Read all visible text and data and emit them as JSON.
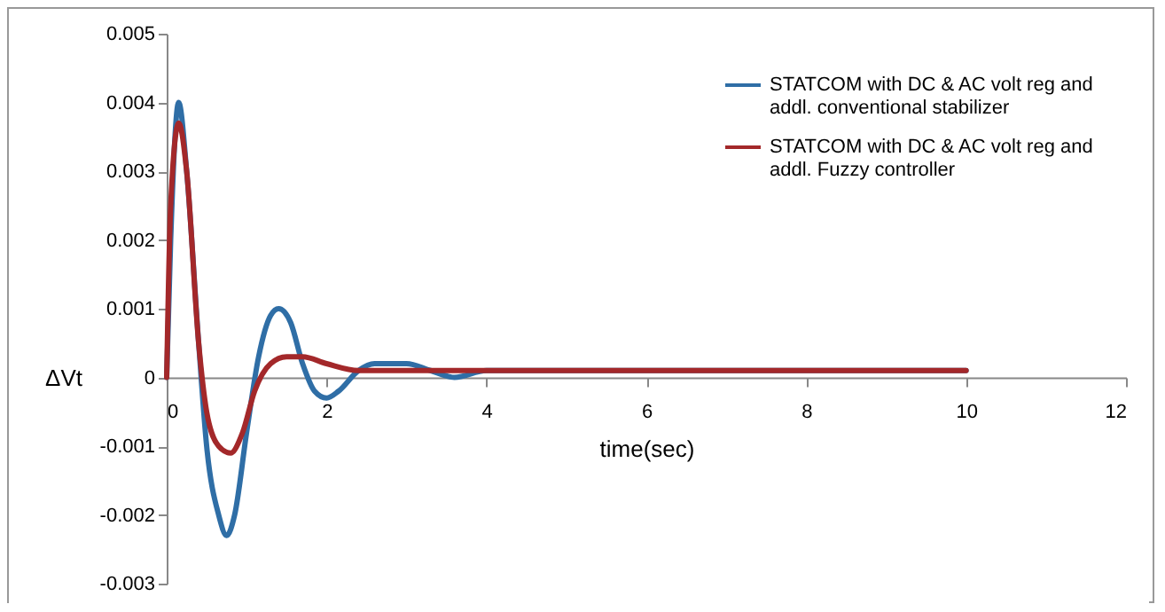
{
  "chart_data": {
    "type": "line",
    "xlabel": "time(sec)",
    "ylabel": "ΔVt",
    "xlim": [
      0,
      12
    ],
    "xticks": [
      0,
      2,
      4,
      6,
      8,
      10,
      12
    ],
    "ylim": [
      -0.003,
      0.005
    ],
    "yticks": [
      -0.003,
      -0.002,
      -0.001,
      0,
      0.001,
      0.002,
      0.003,
      0.004,
      0.005
    ],
    "grid": false,
    "legend": "top right",
    "marker": "none",
    "line_style": "solid",
    "series": [
      {
        "name": "STATCOM with DC & AC volt reg and addl. conventional stabilizer",
        "color": "#2f6ea6",
        "x": [
          0,
          0.05,
          0.15,
          0.25,
          0.4,
          0.5,
          0.65,
          0.75,
          0.85,
          1.0,
          1.15,
          1.3,
          1.4,
          1.55,
          1.7,
          1.85,
          2.0,
          2.15,
          2.4,
          2.6,
          2.8,
          3.0,
          3.3,
          3.6,
          4.0,
          5,
          10
        ],
        "values": [
          0,
          0.002,
          0.004,
          0.003,
          0.0005,
          -0.001,
          -0.002,
          -0.0023,
          -0.002,
          -0.0008,
          0.0003,
          0.0009,
          0.001,
          0.0008,
          0.0002,
          -0.0002,
          -0.0003,
          -0.0002,
          0.0001,
          0.0002,
          0.0002,
          0.0002,
          0.0001,
          0,
          0.0001,
          0.0001,
          0.0001
        ]
      },
      {
        "name": "STATCOM with DC & AC volt reg and addl. Fuzzy controller",
        "color": "#a3282a",
        "x": [
          0,
          0.05,
          0.15,
          0.25,
          0.4,
          0.5,
          0.65,
          0.8,
          0.95,
          1.1,
          1.3,
          1.5,
          1.7,
          2.0,
          2.4,
          3,
          10
        ],
        "values": [
          0,
          0.0025,
          0.0037,
          0.003,
          0.0005,
          -0.0005,
          -0.001,
          -0.0011,
          -0.0008,
          -0.0002,
          0.0002,
          0.0003,
          0.0003,
          0.0002,
          0.0001,
          0.0001,
          0.0001
        ]
      }
    ]
  }
}
